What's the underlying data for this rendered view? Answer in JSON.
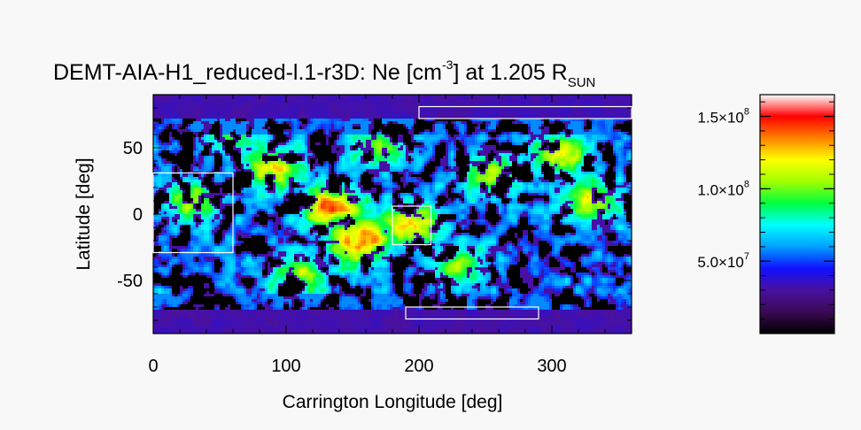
{
  "chart_data": {
    "type": "heatmap",
    "title": {
      "main": "DEMT-AIA-H1_reduced-l.1-r3D: Ne [cm",
      "exp": "-3",
      "mid": "] at 1.205 R",
      "sub": "SUN"
    },
    "xlabel": "Carrington Longitude [deg]",
    "ylabel": "Latitude [deg]",
    "xlim": [
      0,
      360
    ],
    "ylim": [
      -90,
      90
    ],
    "xticks": [
      {
        "value": 0,
        "label": "0"
      },
      {
        "value": 100,
        "label": "100"
      },
      {
        "value": 200,
        "label": "200"
      },
      {
        "value": 300,
        "label": "300"
      }
    ],
    "yticks": [
      {
        "value": 50,
        "label": "50"
      },
      {
        "value": 0,
        "label": "0"
      },
      {
        "value": -50,
        "label": "-50"
      }
    ],
    "colorbar": {
      "range": [
        0,
        165000000.0
      ],
      "colormap": [
        "#000000",
        "#3a0a55",
        "#4a10a0",
        "#1010ff",
        "#00a0ff",
        "#00ffff",
        "#00ff40",
        "#a0ff00",
        "#ffff00",
        "#ff8000",
        "#ff0000",
        "#ffffff"
      ],
      "ticks": [
        {
          "value": 150000000.0,
          "mant": "1.5×10",
          "exp": "8"
        },
        {
          "value": 100000000.0,
          "mant": "1.0×10",
          "exp": "8"
        },
        {
          "value": 50000000.0,
          "mant": "5.0×10",
          "exp": "7"
        }
      ]
    },
    "boxes": [
      {
        "lon": [
          200,
          360
        ],
        "lat": [
          72,
          81
        ]
      },
      {
        "lon": [
          0,
          60
        ],
        "lat": [
          -29,
          31
        ]
      },
      {
        "lon": [
          180,
          209
        ],
        "lat": [
          -23,
          6
        ]
      },
      {
        "lon": [
          190,
          290
        ],
        "lat": [
          -79,
          -70
        ]
      }
    ],
    "hotspots": [
      {
        "lon": 155,
        "lat": -20,
        "ne": 150000000.0
      },
      {
        "lon": 135,
        "lat": 5,
        "ne": 140000000.0
      },
      {
        "lon": 195,
        "lat": -8,
        "ne": 110000000.0
      },
      {
        "lon": 90,
        "lat": 35,
        "ne": 100000000.0
      },
      {
        "lon": 305,
        "lat": 45,
        "ne": 95000000.0
      },
      {
        "lon": 30,
        "lat": 10,
        "ne": 80000000.0
      },
      {
        "lon": 255,
        "lat": 30,
        "ne": 85000000.0
      },
      {
        "lon": 330,
        "lat": 10,
        "ne": 90000000.0
      },
      {
        "lon": 110,
        "lat": -45,
        "ne": 75000000.0
      },
      {
        "lon": 230,
        "lat": -40,
        "ne": 70000000.0
      },
      {
        "lon": 60,
        "lat": 60,
        "ne": 70000000.0
      },
      {
        "lon": 170,
        "lat": 50,
        "ne": 75000000.0
      }
    ]
  }
}
